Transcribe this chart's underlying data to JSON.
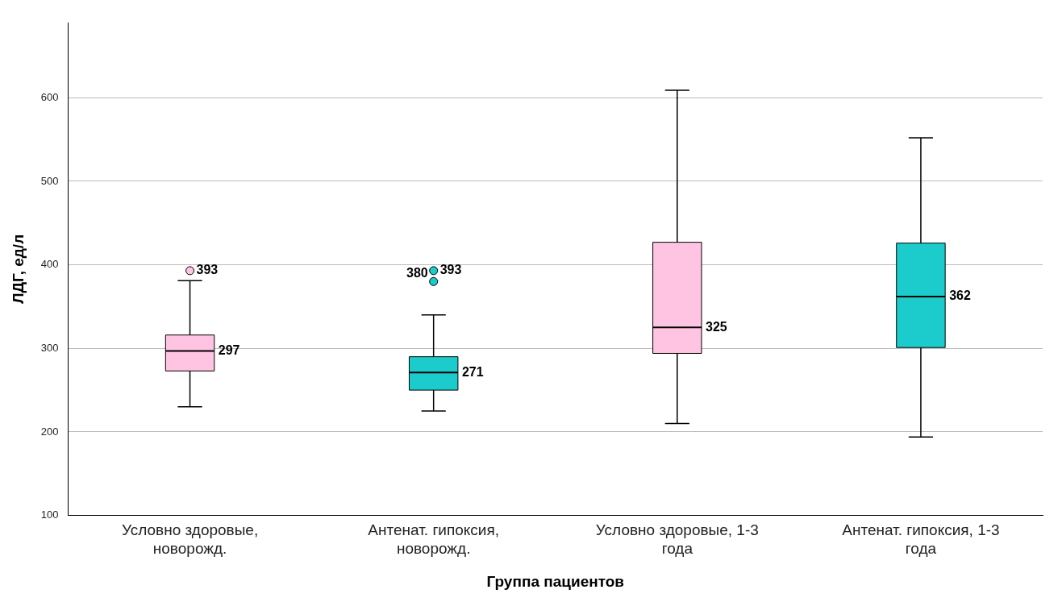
{
  "chart_data": {
    "type": "box",
    "xlabel": "Группа пациентов",
    "ylabel": "ЛДГ, ед/л",
    "categories": [
      "Условно здоровые, новорожд.",
      "Антенат. гипоксия, новорожд.",
      "Условно здоровые, 1-3 года",
      "Антенат. гипоксия, 1-3 года"
    ],
    "colors": [
      "#ffc4e2",
      "#1ccccc",
      "#ffc4e2",
      "#1ccccc"
    ],
    "boxes": [
      {
        "low": 230,
        "q1": 273,
        "median": 297,
        "q3": 316,
        "high": 381
      },
      {
        "low": 225,
        "q1": 250,
        "median": 271,
        "q3": 290,
        "high": 340
      },
      {
        "low": 210,
        "q1": 294,
        "median": 325,
        "q3": 427,
        "high": 609
      },
      {
        "low": 194,
        "q1": 301,
        "median": 362,
        "q3": 426,
        "high": 552
      }
    ],
    "annotations": [
      {
        "text": "297",
        "x": "Условно здоровые, новорожд.",
        "y": 297
      },
      {
        "text": "271",
        "x": "Антенат. гипоксия, новорожд.",
        "y": 271
      },
      {
        "text": "325",
        "x": "Условно здоровые, 1-3 года",
        "y": 325
      },
      {
        "text": "362",
        "x": "Антенат. гипоксия, 1-3 года",
        "y": 362
      }
    ],
    "series": [
      {
        "type": "scatter",
        "x": [
          "Условно здоровые, новорожд.",
          "Антенат. гипоксия, новорожд.",
          "Антенат. гипоксия, новорожд."
        ],
        "values": [
          393,
          393,
          380
        ],
        "colors": [
          "#ffc4e2",
          "#1ccccc",
          "#1ccccc"
        ],
        "value_labels": [
          "393",
          "393",
          "380"
        ],
        "marker": "circle"
      }
    ],
    "ylim": [
      100,
      690
    ],
    "yticks": [
      100,
      200,
      300,
      400,
      500,
      600
    ],
    "grid": "y",
    "legend": false
  }
}
